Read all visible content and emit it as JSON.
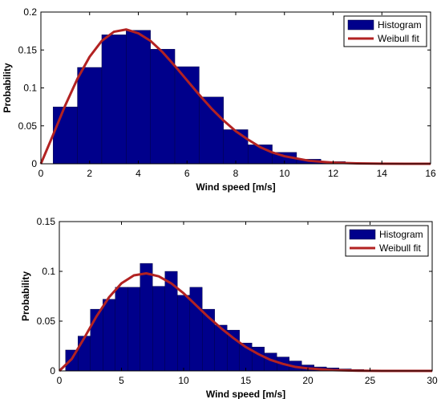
{
  "chart_data": [
    {
      "type": "bar",
      "xlabel": "Wind speed [m/s]",
      "ylabel": "Probability",
      "xlim": [
        0,
        16
      ],
      "ylim": [
        0,
        0.2
      ],
      "xticks": [
        "0",
        "2",
        "4",
        "6",
        "8",
        "10",
        "12",
        "14",
        "16"
      ],
      "yticks": [
        "0",
        "0.05",
        "0.1",
        "0.15",
        "0.2"
      ],
      "grid": false,
      "legend_position": "top-right",
      "colors": {
        "histogram": "#00008b",
        "fit": "#b22222"
      },
      "series": [
        {
          "name": "Histogram",
          "kind": "histogram",
          "bin_width": 1,
          "bin_centers": [
            1,
            2,
            3,
            4,
            5,
            6,
            7,
            8,
            9,
            10,
            11,
            12,
            13,
            14,
            15
          ],
          "values": [
            0.075,
            0.127,
            0.17,
            0.176,
            0.151,
            0.128,
            0.088,
            0.045,
            0.025,
            0.015,
            0.006,
            0.003,
            0.001,
            0.0005,
            0.0003
          ]
        },
        {
          "name": "Weibull fit",
          "kind": "line",
          "x": [
            0,
            0.5,
            1,
            1.5,
            2,
            2.5,
            3,
            3.5,
            4,
            4.5,
            5,
            5.5,
            6,
            6.5,
            7,
            7.5,
            8,
            8.5,
            9,
            9.5,
            10,
            11,
            12,
            13,
            14,
            15,
            16
          ],
          "y": [
            0,
            0.038,
            0.077,
            0.112,
            0.141,
            0.162,
            0.174,
            0.177,
            0.172,
            0.162,
            0.147,
            0.129,
            0.11,
            0.091,
            0.073,
            0.057,
            0.043,
            0.032,
            0.022,
            0.015,
            0.01,
            0.004,
            0.0015,
            0.0005,
            0.0001,
            0,
            0
          ]
        }
      ]
    },
    {
      "type": "bar",
      "xlabel": "Wind speed [m/s]",
      "ylabel": "Probability",
      "xlim": [
        0,
        30
      ],
      "ylim": [
        0,
        0.15
      ],
      "xticks": [
        "0",
        "5",
        "10",
        "15",
        "20",
        "25",
        "30"
      ],
      "yticks": [
        "0",
        "0.05",
        "0.1",
        "0.15"
      ],
      "grid": false,
      "legend_position": "top-right",
      "colors": {
        "histogram": "#00008b",
        "fit": "#b22222"
      },
      "series": [
        {
          "name": "Histogram",
          "kind": "histogram",
          "bin_width": 1,
          "bin_centers": [
            1,
            2,
            3,
            4,
            5,
            6,
            7,
            8,
            9,
            10,
            11,
            12,
            13,
            14,
            15,
            16,
            17,
            18,
            19,
            20,
            21,
            22,
            23,
            24,
            25,
            26,
            27,
            28,
            29
          ],
          "values": [
            0.021,
            0.035,
            0.062,
            0.072,
            0.084,
            0.084,
            0.108,
            0.085,
            0.1,
            0.076,
            0.084,
            0.062,
            0.046,
            0.041,
            0.028,
            0.024,
            0.018,
            0.014,
            0.01,
            0.006,
            0.004,
            0.003,
            0.002,
            0.0015,
            0.001,
            0.0008,
            0.0005,
            0.0003,
            0.0003
          ]
        },
        {
          "name": "Weibull fit",
          "kind": "line",
          "x": [
            0,
            1,
            2,
            3,
            4,
            5,
            6,
            7,
            8,
            9,
            10,
            11,
            12,
            13,
            14,
            15,
            16,
            17,
            18,
            19,
            20,
            22,
            24,
            26,
            28,
            30
          ],
          "y": [
            0,
            0.012,
            0.033,
            0.055,
            0.074,
            0.088,
            0.096,
            0.098,
            0.095,
            0.088,
            0.078,
            0.066,
            0.054,
            0.043,
            0.033,
            0.024,
            0.017,
            0.011,
            0.007,
            0.004,
            0.0025,
            0.0008,
            0.0002,
            0,
            0,
            0
          ]
        }
      ]
    }
  ]
}
